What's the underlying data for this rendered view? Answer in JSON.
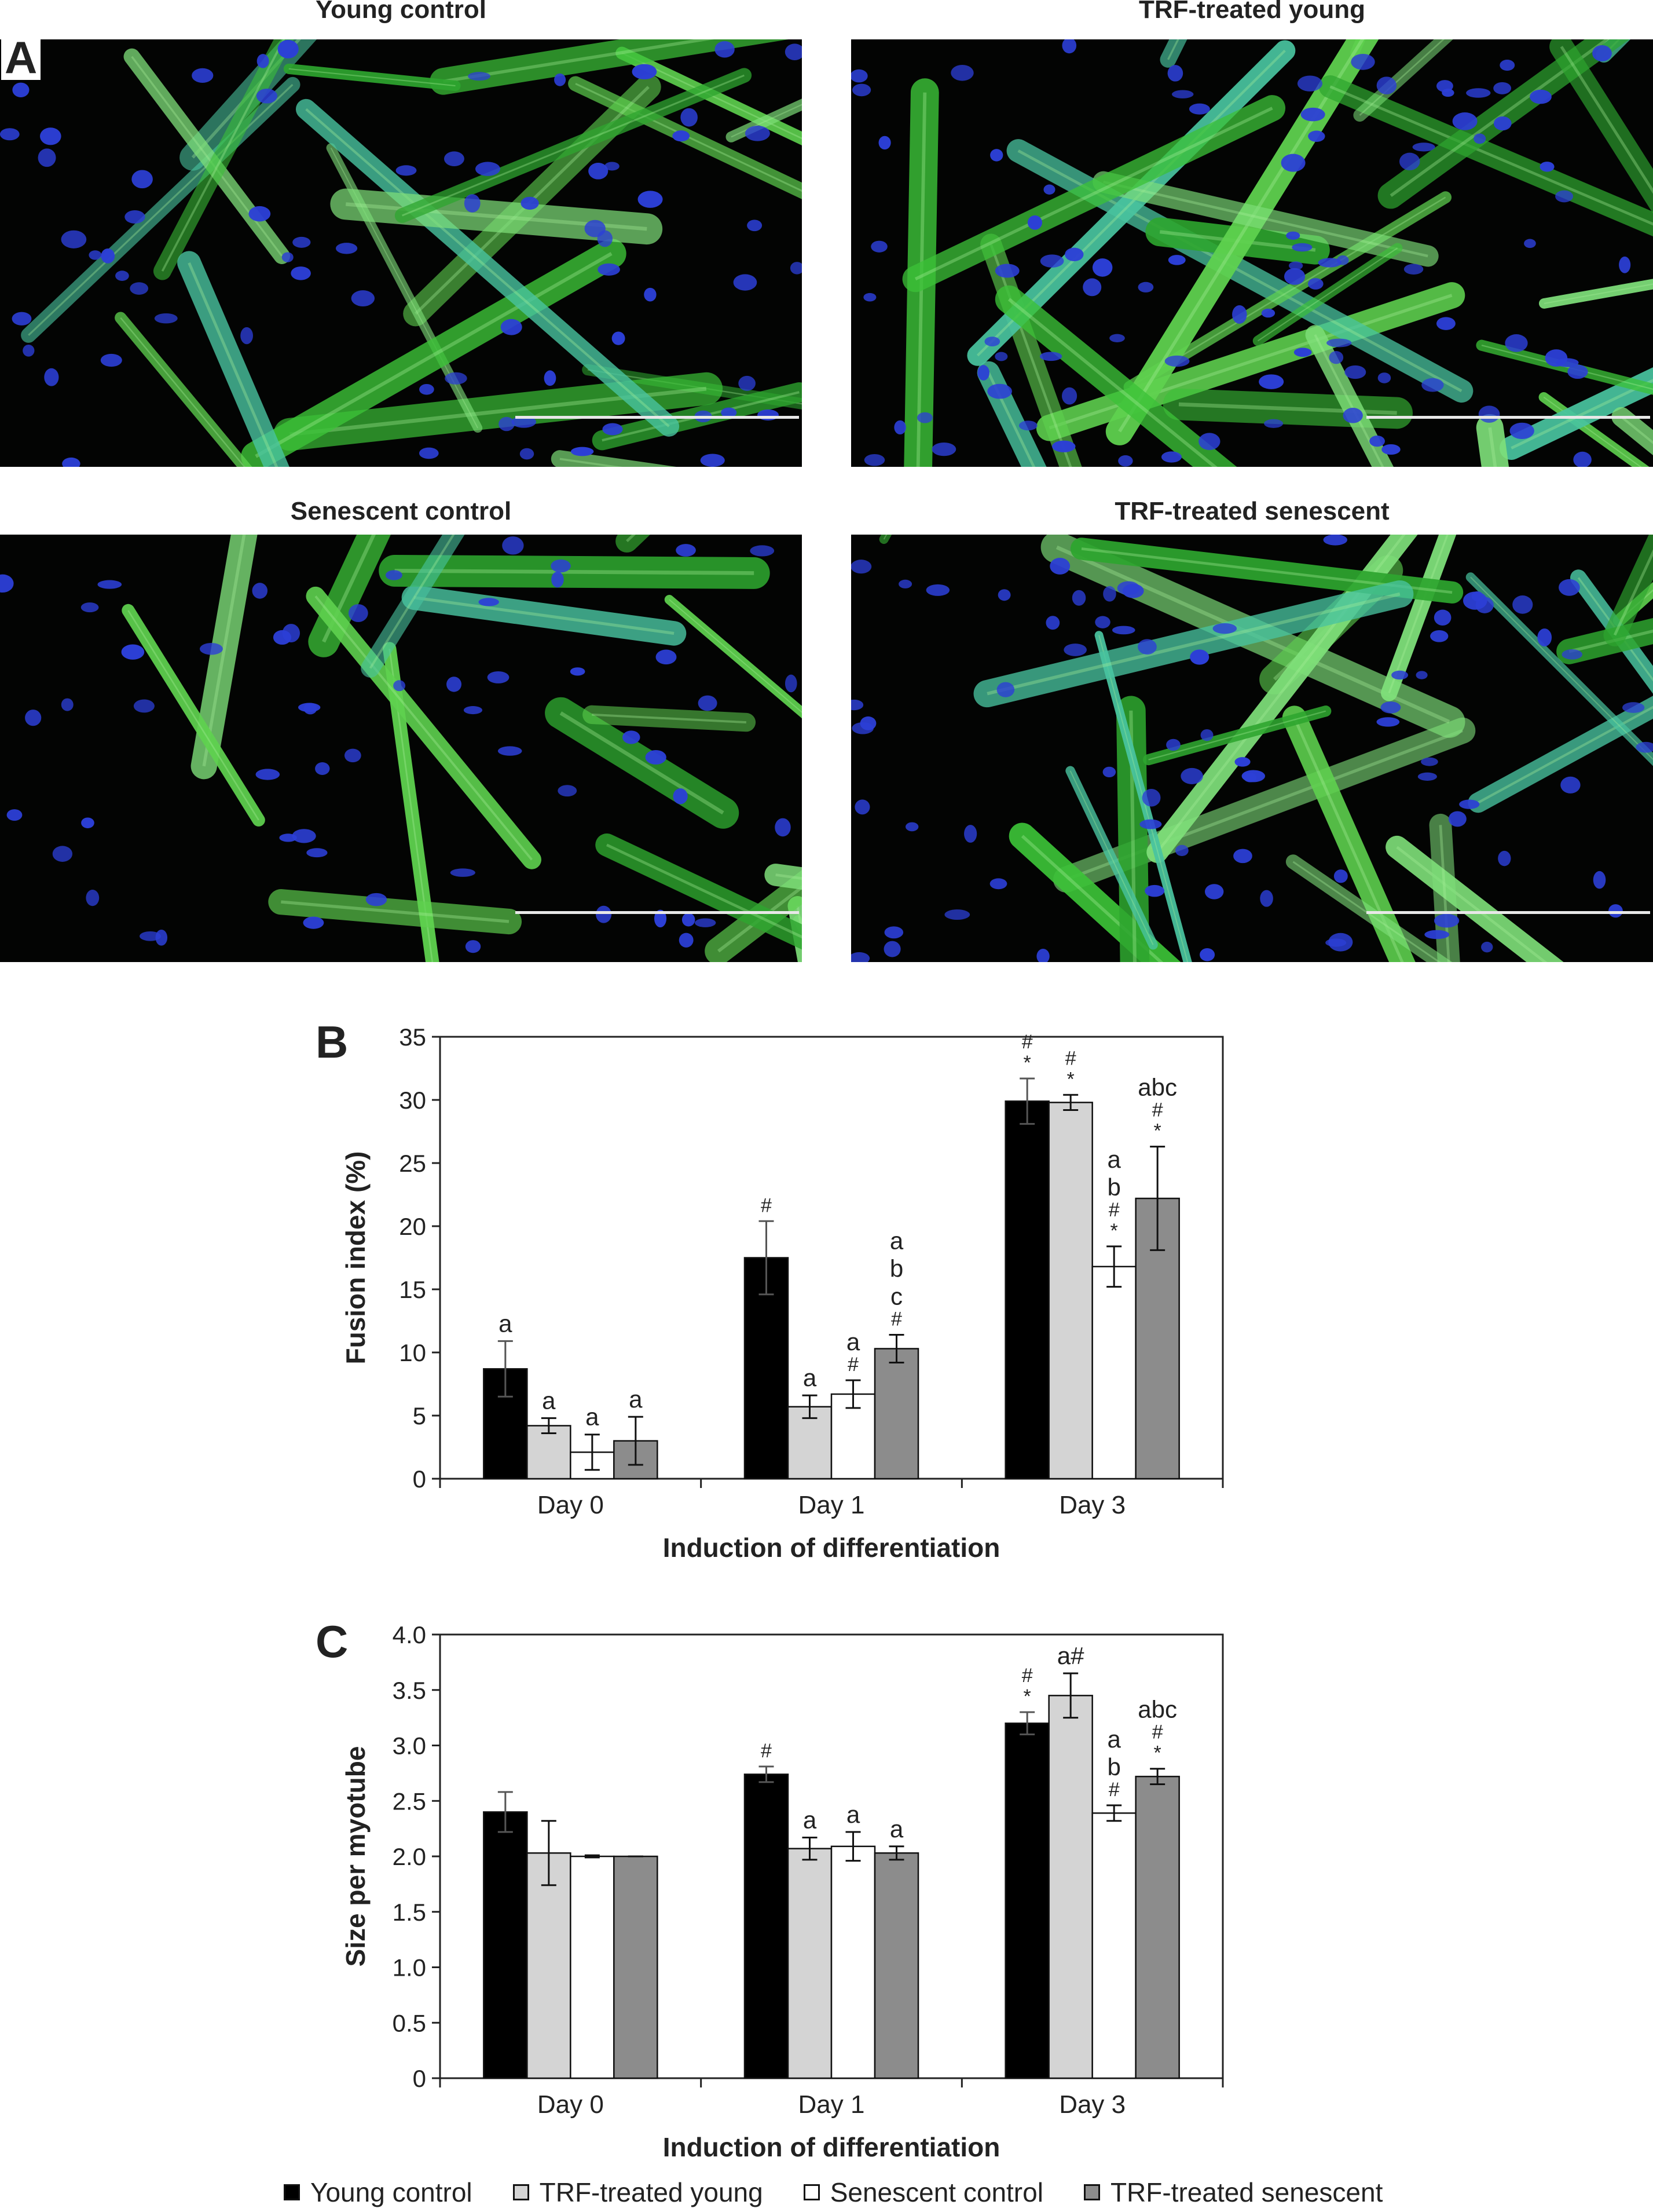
{
  "panel_labels": {
    "a": "A",
    "b": "B",
    "c": "C"
  },
  "micrographs": [
    {
      "title": "Young control"
    },
    {
      "title": "TRF-treated young"
    },
    {
      "title": "Senescent control"
    },
    {
      "title": "TRF-treated senescent"
    }
  ],
  "colors": {
    "young_control": "#000000",
    "trf_young": "#d4d4d4",
    "senescent_control": "#ffffff",
    "trf_senescent": "#8c8c8c",
    "myotube_green": "#3fc23a",
    "nuclei_blue": "#2c3fd6"
  },
  "legend": [
    {
      "label": "Young control",
      "color": "#000000"
    },
    {
      "label": "TRF-treated young",
      "color": "#d4d4d4"
    },
    {
      "label": "Senescent control",
      "color": "#ffffff"
    },
    {
      "label": "TRF-treated senescent",
      "color": "#8c8c8c"
    }
  ],
  "chart_data": [
    {
      "type": "bar",
      "title": "",
      "xlabel": "Induction of differentiation",
      "ylabel": "Fusion index (%)",
      "ylim": [
        0,
        35
      ],
      "yticks": [
        "0",
        "5",
        "10",
        "15",
        "20",
        "25",
        "30",
        "35"
      ],
      "categories": [
        "Day 0",
        "Day 1",
        "Day 3"
      ],
      "series": [
        {
          "name": "Young control",
          "values": [
            8.7,
            17.5,
            29.9
          ],
          "errors": [
            2.2,
            2.9,
            1.8
          ]
        },
        {
          "name": "TRF-treated young",
          "values": [
            4.2,
            5.7,
            29.8
          ],
          "errors": [
            0.6,
            0.9,
            0.6
          ]
        },
        {
          "name": "Senescent control",
          "values": [
            2.1,
            6.7,
            16.8
          ],
          "errors": [
            1.4,
            1.1,
            1.6
          ]
        },
        {
          "name": "TRF-treated senescent",
          "values": [
            3.0,
            10.3,
            22.2
          ],
          "errors": [
            1.9,
            1.1,
            4.1
          ]
        }
      ],
      "annotations": [
        [
          [
            "a"
          ],
          [
            "a"
          ],
          [
            "a"
          ],
          [
            "a"
          ]
        ],
        [
          [
            "#"
          ],
          [
            "a"
          ],
          [
            "a",
            "#"
          ],
          [
            "a",
            "b",
            "c",
            "#"
          ]
        ],
        [
          [
            "#",
            "*"
          ],
          [
            "#",
            "*"
          ],
          [
            "a",
            "b",
            "#",
            "*"
          ],
          [
            "abc",
            "#",
            "*"
          ]
        ]
      ]
    },
    {
      "type": "bar",
      "title": "",
      "xlabel": "Induction of differentiation",
      "ylabel": "Size per myotube",
      "ylim": [
        0,
        4
      ],
      "yticks": [
        "0",
        "0.5",
        "1.0",
        "1.5",
        "2.0",
        "2.5",
        "3.0",
        "3.5",
        "4.0"
      ],
      "categories": [
        "Day 0",
        "Day 1",
        "Day 3"
      ],
      "series": [
        {
          "name": "Young control",
          "values": [
            2.4,
            2.74,
            3.2
          ],
          "errors": [
            0.18,
            0.07,
            0.1
          ]
        },
        {
          "name": "TRF-treated young",
          "values": [
            2.03,
            2.07,
            3.45
          ],
          "errors": [
            0.29,
            0.1,
            0.2
          ]
        },
        {
          "name": "Senescent control",
          "values": [
            2.0,
            2.09,
            2.39
          ],
          "errors": [
            0.01,
            0.13,
            0.07
          ]
        },
        {
          "name": "TRF-treated senescent",
          "values": [
            2.0,
            2.03,
            2.72
          ],
          "errors": [
            0.0,
            0.06,
            0.07
          ]
        }
      ],
      "annotations": [
        [
          [],
          [],
          [],
          []
        ],
        [
          [
            "#"
          ],
          [
            "a"
          ],
          [
            "a"
          ],
          [
            "a"
          ]
        ],
        [
          [
            "#",
            "*"
          ],
          [
            "a#"
          ],
          [
            "a",
            "b",
            "#"
          ],
          [
            "abc",
            "#",
            "*"
          ]
        ]
      ]
    }
  ]
}
